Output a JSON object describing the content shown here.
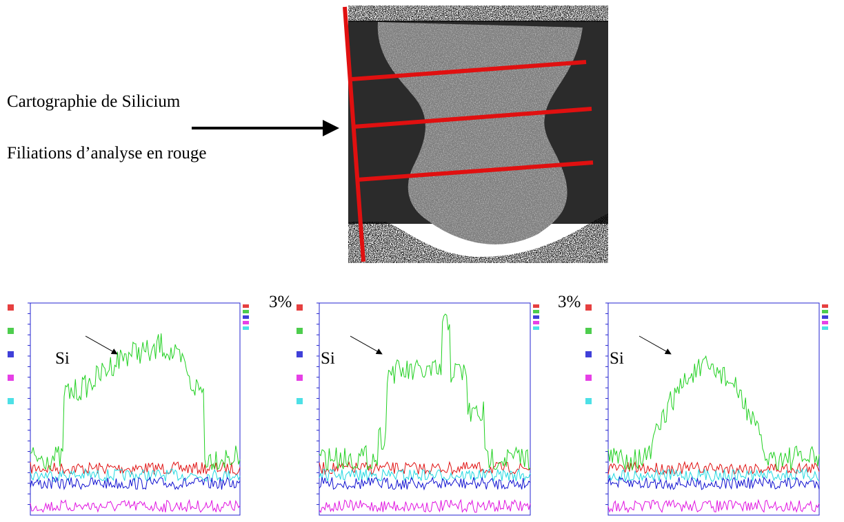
{
  "caption": {
    "line1": "Cartographie de Silicium",
    "line2": "Filiations d’analyse en rouge"
  },
  "plots": [
    {
      "element": "Si"
    },
    {
      "element": "Si",
      "scale_label": "3%"
    },
    {
      "element": "Si",
      "scale_label": "3%"
    }
  ]
}
